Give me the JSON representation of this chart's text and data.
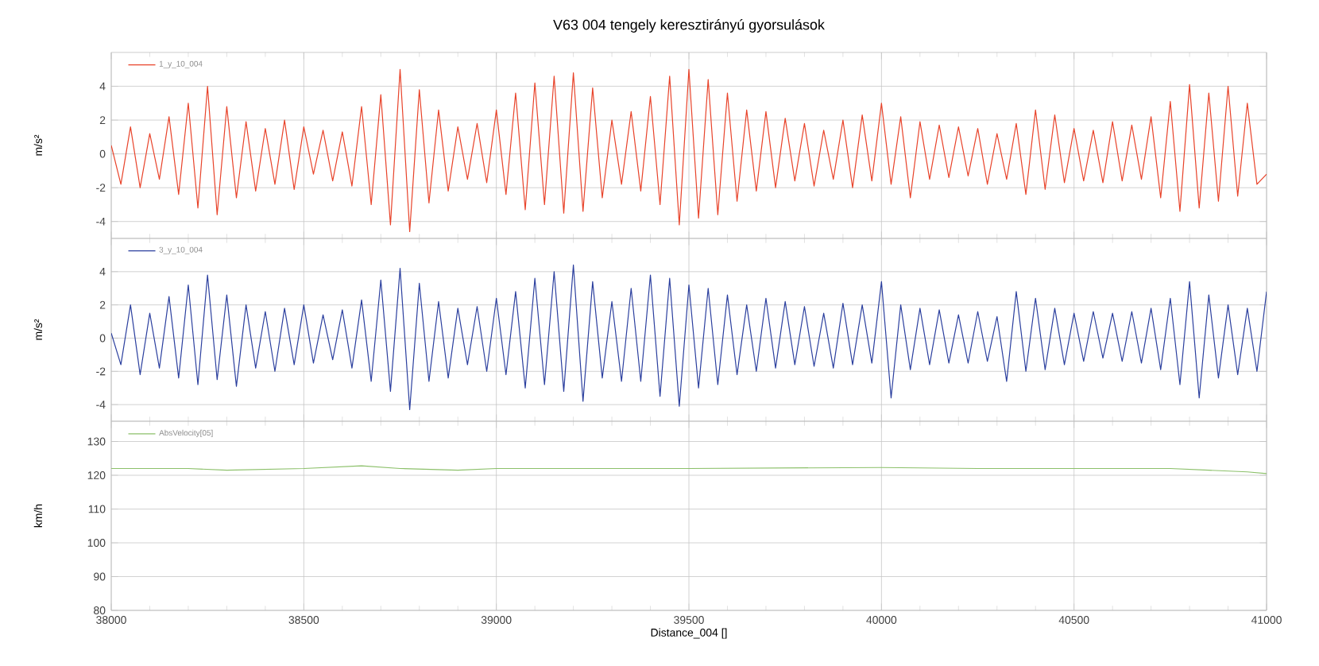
{
  "chart_data": [
    {
      "type": "line",
      "title": "V63 004 tengely keresztirányú gyorsulások",
      "ylabel": "m/s²",
      "xlim": [
        38000,
        41000
      ],
      "xticks": [
        38000,
        38500,
        39000,
        39500,
        40000,
        40500,
        41000
      ],
      "ylim": [
        -5,
        6
      ],
      "yticks": [
        -4,
        -2,
        0,
        2,
        4
      ],
      "tick_labels": "y",
      "grid": true,
      "legend": "top left",
      "x": [
        38000,
        38025,
        38050,
        38075,
        38100,
        38125,
        38150,
        38175,
        38200,
        38225,
        38250,
        38275,
        38300,
        38325,
        38350,
        38375,
        38400,
        38425,
        38450,
        38475,
        38500,
        38525,
        38550,
        38575,
        38600,
        38625,
        38650,
        38675,
        38700,
        38725,
        38750,
        38775,
        38800,
        38825,
        38850,
        38875,
        38900,
        38925,
        38950,
        38975,
        39000,
        39025,
        39050,
        39075,
        39100,
        39125,
        39150,
        39175,
        39200,
        39225,
        39250,
        39275,
        39300,
        39325,
        39350,
        39375,
        39400,
        39425,
        39450,
        39475,
        39500,
        39525,
        39550,
        39575,
        39600,
        39625,
        39650,
        39675,
        39700,
        39725,
        39750,
        39775,
        39800,
        39825,
        39850,
        39875,
        39900,
        39925,
        39950,
        39975,
        40000,
        40025,
        40050,
        40075,
        40100,
        40125,
        40150,
        40175,
        40200,
        40225,
        40250,
        40275,
        40300,
        40325,
        40350,
        40375,
        40400,
        40425,
        40450,
        40475,
        40500,
        40525,
        40550,
        40575,
        40600,
        40625,
        40650,
        40675,
        40700,
        40725,
        40750,
        40775,
        40800,
        40825,
        40850,
        40875,
        40900,
        40925,
        40950,
        40975,
        41000
      ],
      "series": [
        {
          "name": "1_y_10_004",
          "color": "#e8432a",
          "values": [
            0.5,
            -1.8,
            1.6,
            -2.0,
            1.2,
            -1.5,
            2.2,
            -2.4,
            3.0,
            -3.2,
            4.0,
            -3.6,
            2.8,
            -2.6,
            1.9,
            -2.2,
            1.5,
            -1.8,
            2.0,
            -2.1,
            1.6,
            -1.2,
            1.4,
            -1.6,
            1.3,
            -1.9,
            2.8,
            -3.0,
            3.5,
            -4.2,
            5.0,
            -4.6,
            3.8,
            -2.9,
            2.6,
            -2.2,
            1.6,
            -1.5,
            1.8,
            -1.7,
            2.6,
            -2.4,
            3.6,
            -3.3,
            4.2,
            -3.0,
            4.6,
            -3.5,
            4.8,
            -3.4,
            3.9,
            -2.6,
            2.0,
            -1.8,
            2.5,
            -2.2,
            3.4,
            -3.0,
            4.6,
            -4.2,
            5.0,
            -3.8,
            4.4,
            -3.6,
            3.6,
            -2.8,
            2.6,
            -2.2,
            2.5,
            -2.0,
            2.1,
            -1.6,
            1.8,
            -1.9,
            1.4,
            -1.5,
            2.0,
            -2.0,
            2.3,
            -1.6,
            3.0,
            -1.8,
            2.2,
            -2.6,
            1.9,
            -1.5,
            1.7,
            -1.4,
            1.6,
            -1.3,
            1.5,
            -1.8,
            1.2,
            -1.5,
            1.8,
            -2.4,
            2.6,
            -2.1,
            2.3,
            -1.7,
            1.5,
            -1.6,
            1.4,
            -1.7,
            1.9,
            -1.6,
            1.7,
            -1.5,
            2.2,
            -2.6,
            3.1,
            -3.4,
            4.1,
            -3.2,
            3.6,
            -2.8,
            4.0,
            -2.5,
            3.0,
            -1.8,
            -1.2
          ]
        }
      ]
    },
    {
      "type": "line",
      "ylabel": "m/s²",
      "xlim": [
        38000,
        41000
      ],
      "xticks": [
        38000,
        38500,
        39000,
        39500,
        40000,
        40500,
        41000
      ],
      "ylim": [
        -5,
        6
      ],
      "yticks": [
        -4,
        -2,
        0,
        2,
        4
      ],
      "tick_labels": "y",
      "grid": true,
      "legend": "top left",
      "x": [
        38000,
        38025,
        38050,
        38075,
        38100,
        38125,
        38150,
        38175,
        38200,
        38225,
        38250,
        38275,
        38300,
        38325,
        38350,
        38375,
        38400,
        38425,
        38450,
        38475,
        38500,
        38525,
        38550,
        38575,
        38600,
        38625,
        38650,
        38675,
        38700,
        38725,
        38750,
        38775,
        38800,
        38825,
        38850,
        38875,
        38900,
        38925,
        38950,
        38975,
        39000,
        39025,
        39050,
        39075,
        39100,
        39125,
        39150,
        39175,
        39200,
        39225,
        39250,
        39275,
        39300,
        39325,
        39350,
        39375,
        39400,
        39425,
        39450,
        39475,
        39500,
        39525,
        39550,
        39575,
        39600,
        39625,
        39650,
        39675,
        39700,
        39725,
        39750,
        39775,
        39800,
        39825,
        39850,
        39875,
        39900,
        39925,
        39950,
        39975,
        40000,
        40025,
        40050,
        40075,
        40100,
        40125,
        40150,
        40175,
        40200,
        40225,
        40250,
        40275,
        40300,
        40325,
        40350,
        40375,
        40400,
        40425,
        40450,
        40475,
        40500,
        40525,
        40550,
        40575,
        40600,
        40625,
        40650,
        40675,
        40700,
        40725,
        40750,
        40775,
        40800,
        40825,
        40850,
        40875,
        40900,
        40925,
        40950,
        40975,
        41000
      ],
      "series": [
        {
          "name": "3_y_10_004",
          "color": "#2b3f9e",
          "values": [
            0.3,
            -1.6,
            2.0,
            -2.2,
            1.5,
            -1.8,
            2.5,
            -2.4,
            3.2,
            -2.8,
            3.8,
            -2.5,
            2.6,
            -2.9,
            2.0,
            -1.8,
            1.6,
            -2.0,
            1.8,
            -1.6,
            2.0,
            -1.5,
            1.4,
            -1.3,
            1.7,
            -1.8,
            2.3,
            -2.6,
            3.5,
            -3.2,
            4.2,
            -4.3,
            3.3,
            -2.6,
            2.2,
            -2.4,
            1.8,
            -1.6,
            1.9,
            -2.0,
            2.4,
            -2.2,
            2.8,
            -3.0,
            3.6,
            -2.8,
            4.0,
            -3.2,
            4.4,
            -3.8,
            3.4,
            -2.4,
            2.2,
            -2.6,
            3.0,
            -2.6,
            3.8,
            -3.5,
            3.6,
            -4.1,
            3.2,
            -3.0,
            3.0,
            -2.8,
            2.6,
            -2.2,
            2.0,
            -2.0,
            2.4,
            -1.8,
            2.2,
            -1.6,
            1.9,
            -1.7,
            1.5,
            -1.8,
            2.1,
            -1.6,
            2.0,
            -1.5,
            3.4,
            -3.6,
            2.0,
            -1.9,
            1.8,
            -1.6,
            1.7,
            -1.5,
            1.4,
            -1.5,
            1.6,
            -1.4,
            1.3,
            -2.6,
            2.8,
            -2.0,
            2.4,
            -1.9,
            1.8,
            -1.6,
            1.5,
            -1.4,
            1.6,
            -1.2,
            1.5,
            -1.4,
            1.6,
            -1.5,
            1.8,
            -1.9,
            2.4,
            -2.8,
            3.4,
            -3.6,
            2.6,
            -2.4,
            2.0,
            -2.2,
            1.8,
            -2.0,
            2.8
          ]
        }
      ]
    },
    {
      "type": "line",
      "ylabel": "km/h",
      "xlabel": "Distance_004 []",
      "xlim": [
        38000,
        41000
      ],
      "xticks": [
        38000,
        38500,
        39000,
        39500,
        40000,
        40500,
        41000
      ],
      "ylim": [
        80,
        136
      ],
      "yticks": [
        80,
        90,
        100,
        110,
        120,
        130
      ],
      "grid": true,
      "legend": "top left",
      "x": [
        38000,
        38200,
        38300,
        38500,
        38650,
        38750,
        38900,
        39000,
        39250,
        39500,
        40000,
        40250,
        40500,
        40750,
        40850,
        40950,
        41000
      ],
      "series": [
        {
          "name": "AbsVelocity[05]",
          "color": "#8cc06a",
          "values": [
            122,
            122,
            121.5,
            122,
            122.8,
            122,
            121.5,
            122,
            122,
            122,
            122.3,
            122,
            122,
            122,
            121.5,
            121,
            120.5
          ]
        }
      ]
    }
  ]
}
